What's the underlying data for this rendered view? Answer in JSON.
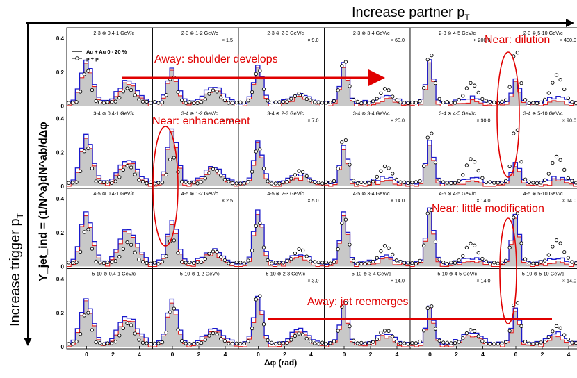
{
  "colors": {
    "auau": "#1a1acc",
    "auau_alt": "#e02020",
    "pp": "#000000",
    "fill": "#c8c8c8",
    "annotation": "#e00000"
  },
  "header": {
    "partner_label": "Increase partner p",
    "partner_sub": "T",
    "trigger_label": "Increase trigger p",
    "trigger_sub": "T"
  },
  "axes": {
    "ylabel": "Y_jet_ind = (1/N^a)dN^ab/dΔφ",
    "xlabel": "Δφ (rad)",
    "x_ticks": [
      "0",
      "2",
      "4"
    ],
    "y_ticks": [
      "0",
      "0.2",
      "0.4"
    ]
  },
  "legend": {
    "auau": "Au + Au 0 - 20 %",
    "pp": "p + p"
  },
  "annotations": {
    "away_shoulder": "Away: shoulder develops",
    "near_dilution": "Near: dilution",
    "near_enhancement": "Near: enhancement",
    "near_little": "Near: little modification",
    "away_reemerge": "Away: jet reemerges"
  },
  "chart_data": {
    "type": "line",
    "xlabel": "Δφ (rad)",
    "ylabel": "Y_jet_ind = (1/N^a)dN^ab/dΔφ",
    "series_names": [
      "Au + Au 0 - 20 %",
      "p + p"
    ],
    "rows": [
      {
        "trigger": "2-3",
        "panels": [
          {
            "label": "2-3 ⊗ 0.4-1 GeV/c",
            "scale": "",
            "near": 0.25,
            "away": 0.13,
            "pp_near": 0.2,
            "pp_away": 0.09,
            "ylim": [
              0,
              0.45
            ]
          },
          {
            "label": "2-3 ⊗ 1-2 GeV/c",
            "scale": "× 1.5",
            "near": 0.2,
            "away": 0.1,
            "pp_near": 0.16,
            "pp_away": 0.07,
            "ylim": [
              0,
              0.45
            ]
          },
          {
            "label": "2-3 ⊗ 2-3 GeV/c",
            "scale": "× 9.0",
            "near": 0.22,
            "away": 0.06,
            "pp_near": 0.2,
            "pp_away": 0.05,
            "ylim": [
              0,
              0.45
            ]
          },
          {
            "label": "2-3 ⊗ 3-4 GeV/c",
            "scale": "× 60.0",
            "near": 0.24,
            "away": 0.04,
            "pp_near": 0.26,
            "pp_away": 0.08,
            "ylim": [
              0,
              0.45
            ]
          },
          {
            "label": "2-3 ⊗ 4-5 GeV/c",
            "scale": "× 200.0",
            "near": 0.25,
            "away": 0.03,
            "pp_near": 0.3,
            "pp_away": 0.12,
            "ylim": [
              0,
              0.45
            ]
          },
          {
            "label": "2-3 ⊗ 5-10 GeV/c",
            "scale": "× 400.0",
            "near": 0.14,
            "away": 0.03,
            "pp_near": 0.32,
            "pp_away": 0.16,
            "ylim": [
              0,
              0.45
            ]
          }
        ]
      },
      {
        "trigger": "3-4",
        "panels": [
          {
            "label": "3-4 ⊗ 0.4-1 GeV/c",
            "scale": "",
            "near": 0.28,
            "away": 0.14,
            "pp_near": 0.22,
            "pp_away": 0.1,
            "ylim": [
              0,
              0.45
            ]
          },
          {
            "label": "3-4 ⊗ 1-2 GeV/c",
            "scale": "× 2.5",
            "near": 0.32,
            "away": 0.1,
            "pp_near": 0.16,
            "pp_away": 0.08,
            "ylim": [
              0,
              0.45
            ]
          },
          {
            "label": "3-4 ⊗ 2-3 GeV/c",
            "scale": "× 7.0",
            "near": 0.24,
            "away": 0.05,
            "pp_near": 0.22,
            "pp_away": 0.07,
            "ylim": [
              0,
              0.45
            ]
          },
          {
            "label": "3-4 ⊗ 3-4 GeV/c",
            "scale": "× 25.0",
            "near": 0.23,
            "away": 0.03,
            "pp_near": 0.28,
            "pp_away": 0.1,
            "ylim": [
              0,
              0.45
            ]
          },
          {
            "label": "3-4 ⊗ 4-5 GeV/c",
            "scale": "× 90.0",
            "near": 0.26,
            "away": 0.03,
            "pp_near": 0.32,
            "pp_away": 0.14,
            "ylim": [
              0,
              0.45
            ]
          },
          {
            "label": "3-4 ⊗ 5-10 GeV/c",
            "scale": "× 90.0",
            "near": 0.13,
            "away": 0.03,
            "pp_near": 0.34,
            "pp_away": 0.16,
            "ylim": [
              0,
              0.45
            ]
          }
        ]
      },
      {
        "trigger": "4-5",
        "panels": [
          {
            "label": "4-5 ⊗ 0.4-1 GeV/c",
            "scale": "",
            "near": 0.3,
            "away": 0.2,
            "pp_near": 0.22,
            "pp_away": 0.12,
            "ylim": [
              0,
              0.45
            ]
          },
          {
            "label": "4-5 ⊗ 1-2 GeV/c",
            "scale": "× 2.5",
            "near": 0.26,
            "away": 0.08,
            "pp_near": 0.15,
            "pp_away": 0.07,
            "ylim": [
              0,
              0.45
            ]
          },
          {
            "label": "4-5 ⊗ 2-3 GeV/c",
            "scale": "× 5.0",
            "near": 0.32,
            "away": 0.05,
            "pp_near": 0.26,
            "pp_away": 0.08,
            "ylim": [
              0,
              0.45
            ]
          },
          {
            "label": "4-5 ⊗ 3-4 GeV/c",
            "scale": "× 14.0",
            "near": 0.3,
            "away": 0.04,
            "pp_near": 0.28,
            "pp_away": 0.1,
            "ylim": [
              0,
              0.45
            ]
          },
          {
            "label": "4-5 ⊗ 4-5 GeV/c",
            "scale": "× 14.0",
            "near": 0.32,
            "away": 0.03,
            "pp_near": 0.34,
            "pp_away": 0.12,
            "ylim": [
              0,
              0.45
            ]
          },
          {
            "label": "4-5 ⊗ 5-10 GeV/c",
            "scale": "× 14.0",
            "near": 0.3,
            "away": 0.03,
            "pp_near": 0.32,
            "pp_away": 0.14,
            "ylim": [
              0,
              0.45
            ]
          }
        ]
      },
      {
        "trigger": "5-10",
        "panels": [
          {
            "label": "5-10 ⊗ 0.4-1 GeV/c",
            "scale": "",
            "near": 0.26,
            "away": 0.16,
            "pp_near": 0.2,
            "pp_away": 0.12,
            "ylim": [
              0,
              0.45
            ]
          },
          {
            "label": "5-10 ⊗ 1-2 GeV/c",
            "scale": "",
            "near": 0.26,
            "away": 0.08,
            "pp_near": 0.22,
            "pp_away": 0.06,
            "ylim": [
              0,
              0.45
            ]
          },
          {
            "label": "5-10 ⊗ 2-3 GeV/c",
            "scale": "× 3.0",
            "near": 0.28,
            "away": 0.08,
            "pp_near": 0.3,
            "pp_away": 0.06,
            "ylim": [
              0,
              0.45
            ]
          },
          {
            "label": "5-10 ⊗ 3-4 GeV/c",
            "scale": "× 14.0",
            "near": 0.24,
            "away": 0.06,
            "pp_near": 0.26,
            "pp_away": 0.08,
            "ylim": [
              0,
              0.45
            ]
          },
          {
            "label": "5-10 ⊗ 4-5 GeV/c",
            "scale": "× 14.0",
            "near": 0.22,
            "away": 0.06,
            "pp_near": 0.24,
            "pp_away": 0.08,
            "ylim": [
              0,
              0.45
            ]
          },
          {
            "label": "5-10 ⊗ 5-10 GeV/c",
            "scale": "× 14.0",
            "near": 0.22,
            "away": 0.06,
            "pp_near": 0.26,
            "pp_away": 0.1,
            "ylim": [
              0,
              0.45
            ]
          }
        ]
      }
    ],
    "xlim": [
      -1.5,
      5.0
    ],
    "x_ticks": [
      0,
      2,
      4
    ],
    "y_ticks": [
      0,
      0.2,
      0.4
    ]
  }
}
